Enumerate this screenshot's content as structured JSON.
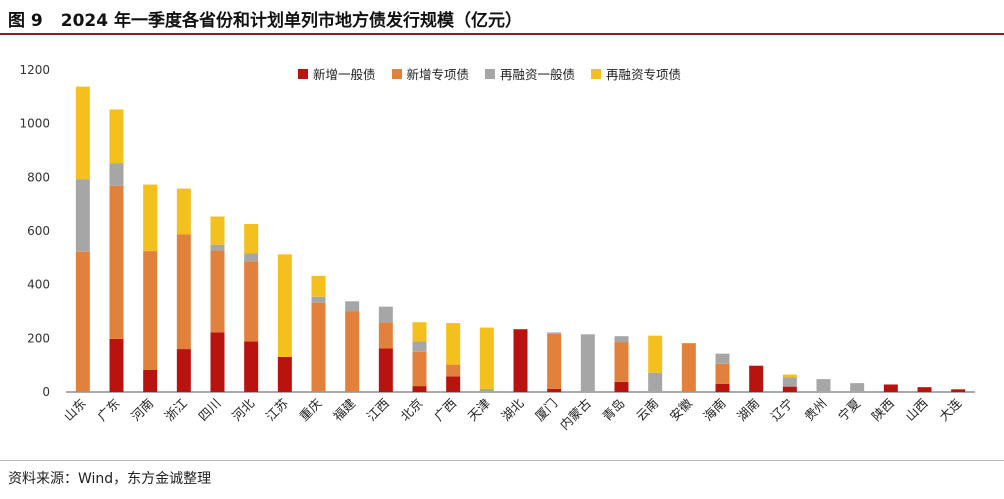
{
  "figure": {
    "number": "图 9",
    "title": "2024 年一季度各省份和计划单列市地方债发行规模（亿元）",
    "source": "资料来源：Wind，东方金诚整理"
  },
  "colors": {
    "新增一般债": "#b8130f",
    "新增专项债": "#e2813b",
    "再融资一般债": "#a6a6a6",
    "再融资专项债": "#f4c01e"
  },
  "chart_data": {
    "type": "bar",
    "stacked": true,
    "ylim": [
      0,
      1200
    ],
    "yticks": [
      0,
      200,
      400,
      600,
      800,
      1000,
      1200
    ],
    "legend_position": "top-center",
    "categories": [
      "山东",
      "广东",
      "河南",
      "浙江",
      "四川",
      "河北",
      "江苏",
      "重庆",
      "福建",
      "江西",
      "北京",
      "广西",
      "天津",
      "湖北",
      "厦门",
      "内蒙古",
      "青岛",
      "云南",
      "安徽",
      "海南",
      "湖南",
      "辽宁",
      "贵州",
      "宁夏",
      "陕西",
      "山西",
      "大连"
    ],
    "series": [
      {
        "name": "新增一般债",
        "values": [
          0,
          198,
          82,
          160,
          222,
          188,
          131,
          0,
          0,
          162,
          22,
          58,
          0,
          234,
          12,
          0,
          38,
          0,
          0,
          30,
          98,
          20,
          0,
          0,
          28,
          18,
          10
        ]
      },
      {
        "name": "新增专项债",
        "values": [
          523,
          570,
          443,
          428,
          305,
          298,
          0,
          333,
          300,
          98,
          128,
          44,
          0,
          0,
          205,
          0,
          148,
          0,
          182,
          75,
          0,
          0,
          0,
          0,
          0,
          0,
          0
        ]
      },
      {
        "name": "再融资一般债",
        "values": [
          270,
          85,
          0,
          0,
          22,
          30,
          0,
          22,
          38,
          58,
          38,
          0,
          12,
          0,
          5,
          215,
          22,
          72,
          0,
          38,
          0,
          35,
          48,
          33,
          0,
          0,
          0
        ]
      },
      {
        "name": "再融资专项债",
        "values": [
          345,
          200,
          248,
          170,
          105,
          110,
          382,
          78,
          0,
          0,
          72,
          155,
          228,
          0,
          0,
          0,
          0,
          138,
          0,
          0,
          0,
          10,
          0,
          0,
          0,
          0,
          0
        ]
      }
    ]
  }
}
